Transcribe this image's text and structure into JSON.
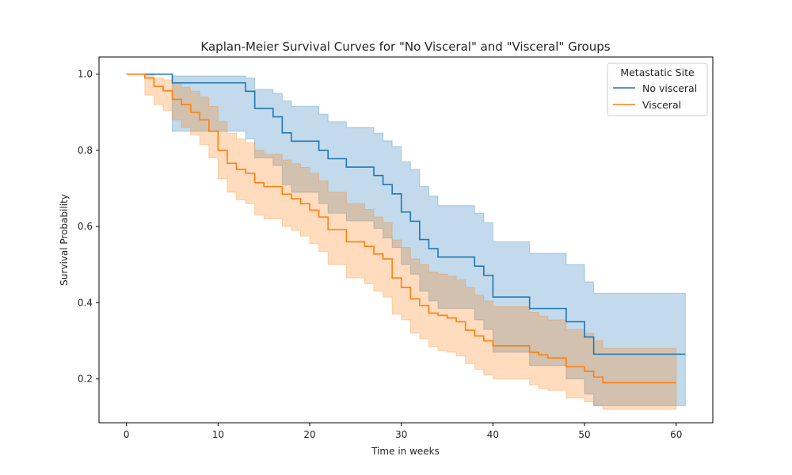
{
  "chart_data": {
    "type": "line",
    "title": "Kaplan-Meier Survival Curves for \"No Visceral\" and \"Visceral\" Groups",
    "xlabel": "Time in weeks",
    "ylabel": "Survival Probability",
    "xlim": [
      -3,
      64
    ],
    "ylim": [
      0.085,
      1.045
    ],
    "xticks": [
      0,
      10,
      20,
      30,
      40,
      50,
      60
    ],
    "yticks": [
      0.2,
      0.4,
      0.6,
      0.8,
      1.0
    ],
    "xtick_labels": [
      "0",
      "10",
      "20",
      "30",
      "40",
      "50",
      "60"
    ],
    "ytick_labels": [
      "0.2",
      "0.4",
      "0.6",
      "0.8",
      "1.0"
    ],
    "grid": false,
    "legend": {
      "title": "Metastatic Site",
      "placement": "top-right"
    },
    "series": [
      {
        "name": "No visceral",
        "color": "#1f77b4",
        "step": "post",
        "x": [
          0,
          5,
          13,
          14,
          16,
          17,
          18,
          21,
          22,
          24,
          27,
          28,
          29,
          30,
          31,
          32,
          33,
          34,
          38,
          39,
          40,
          44,
          48,
          50,
          51,
          61
        ],
        "y": [
          1.0,
          0.977,
          0.955,
          0.91,
          0.888,
          0.846,
          0.824,
          0.8,
          0.778,
          0.756,
          0.734,
          0.71,
          0.686,
          0.638,
          0.614,
          0.566,
          0.542,
          0.52,
          0.496,
          0.472,
          0.415,
          0.385,
          0.35,
          0.31,
          0.265,
          0.265
        ],
        "ci_lower": [
          1.0,
          0.85,
          0.83,
          0.78,
          0.76,
          0.71,
          0.69,
          0.66,
          0.635,
          0.615,
          0.595,
          0.57,
          0.545,
          0.5,
          0.475,
          0.43,
          0.405,
          0.385,
          0.355,
          0.33,
          0.27,
          0.235,
          0.2,
          0.16,
          0.13,
          0.13
        ],
        "ci_upper": [
          1.0,
          0.995,
          0.99,
          0.96,
          0.95,
          0.93,
          0.915,
          0.895,
          0.875,
          0.86,
          0.845,
          0.825,
          0.81,
          0.77,
          0.75,
          0.705,
          0.68,
          0.655,
          0.635,
          0.61,
          0.56,
          0.53,
          0.5,
          0.455,
          0.425,
          0.425
        ]
      },
      {
        "name": "Visceral",
        "color": "#ff7f0e",
        "step": "post",
        "x": [
          0,
          2,
          3,
          4,
          5,
          6,
          7,
          8,
          9,
          10,
          11,
          12,
          13,
          14,
          15,
          17,
          18,
          19,
          20,
          21,
          22,
          24,
          26,
          27,
          28,
          29,
          30,
          31,
          32,
          33,
          34,
          35,
          36,
          37,
          38,
          39,
          40,
          44,
          45,
          46,
          48,
          50,
          51,
          52,
          60
        ],
        "y": [
          1.0,
          0.99,
          0.968,
          0.956,
          0.934,
          0.92,
          0.9,
          0.88,
          0.85,
          0.8,
          0.766,
          0.75,
          0.74,
          0.715,
          0.705,
          0.685,
          0.673,
          0.66,
          0.643,
          0.625,
          0.592,
          0.56,
          0.548,
          0.528,
          0.515,
          0.465,
          0.44,
          0.41,
          0.393,
          0.373,
          0.367,
          0.36,
          0.35,
          0.328,
          0.313,
          0.3,
          0.287,
          0.27,
          0.263,
          0.255,
          0.232,
          0.22,
          0.205,
          0.19,
          0.19
        ],
        "ci_lower": [
          1.0,
          0.945,
          0.92,
          0.905,
          0.88,
          0.86,
          0.84,
          0.815,
          0.78,
          0.725,
          0.69,
          0.67,
          0.66,
          0.63,
          0.62,
          0.6,
          0.59,
          0.575,
          0.555,
          0.535,
          0.5,
          0.465,
          0.45,
          0.43,
          0.415,
          0.37,
          0.355,
          0.32,
          0.305,
          0.285,
          0.275,
          0.27,
          0.26,
          0.24,
          0.225,
          0.21,
          0.2,
          0.185,
          0.175,
          0.17,
          0.15,
          0.14,
          0.13,
          0.12,
          0.12
        ],
        "ci_upper": [
          1.0,
          0.998,
          0.99,
          0.985,
          0.975,
          0.965,
          0.955,
          0.94,
          0.915,
          0.875,
          0.845,
          0.83,
          0.82,
          0.8,
          0.79,
          0.775,
          0.765,
          0.755,
          0.74,
          0.72,
          0.69,
          0.66,
          0.645,
          0.625,
          0.61,
          0.565,
          0.545,
          0.515,
          0.5,
          0.48,
          0.475,
          0.47,
          0.46,
          0.44,
          0.42,
          0.405,
          0.39,
          0.375,
          0.365,
          0.355,
          0.33,
          0.32,
          0.3,
          0.28,
          0.28
        ]
      }
    ]
  }
}
